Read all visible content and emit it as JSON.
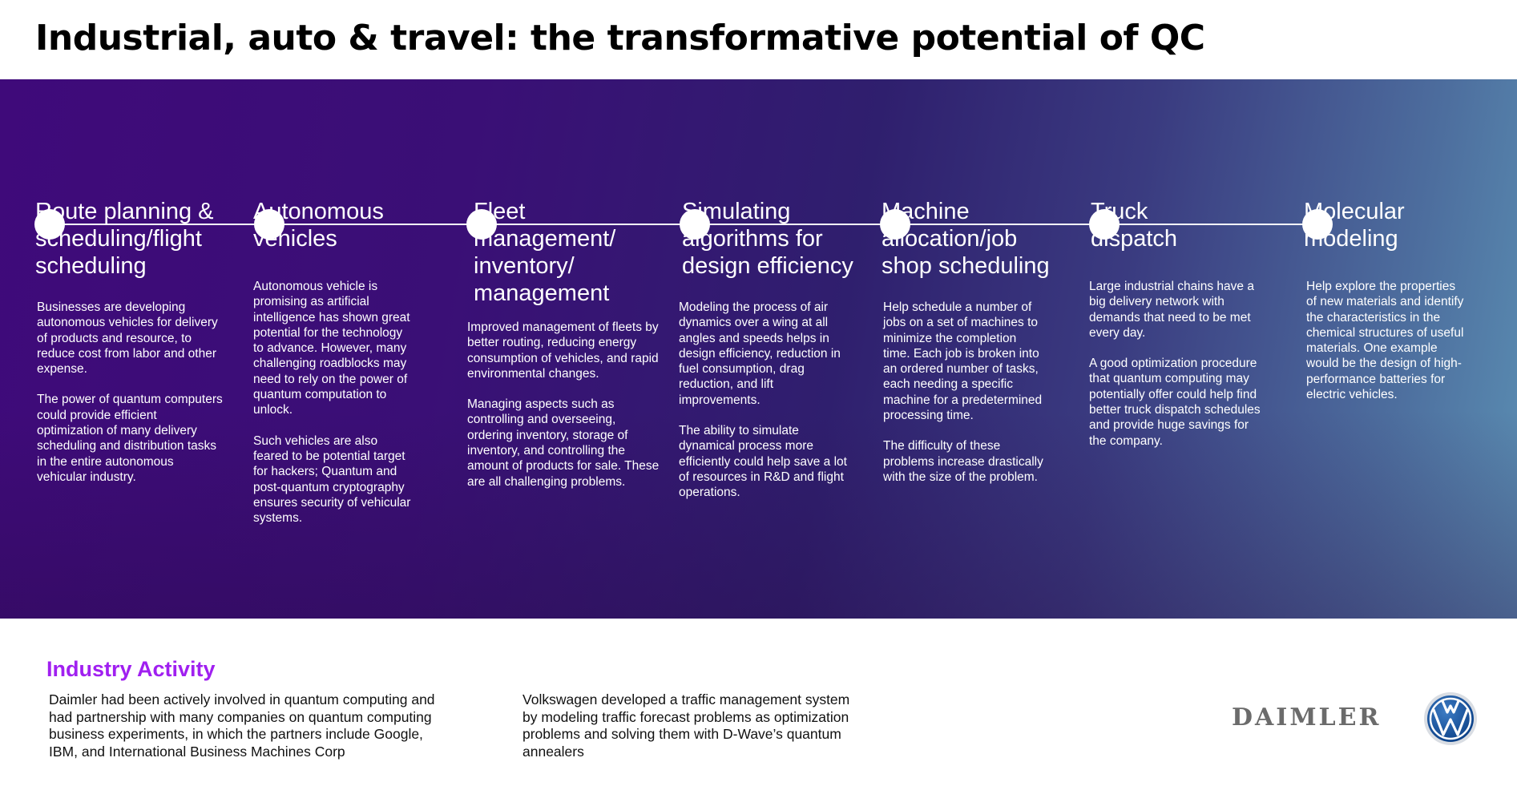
{
  "title": "Industrial, auto & travel: the transformative potential of QC",
  "columns": [
    {
      "title": "Route planning & scheduling/flight scheduling",
      "body": [
        "Businesses are developing autonomous vehicles for delivery of products and resource, to reduce cost from labor and other expense.",
        "The power of quantum computers could provide efficient optimization of many delivery scheduling and distribution tasks in the entire autonomous vehicular industry."
      ]
    },
    {
      "title": "Autonomous vehicles",
      "body": [
        "Autonomous vehicle is promising as artificial intelligence has shown great potential for the technology to advance. However, many challenging roadblocks may need to rely on the power of quantum computation to unlock.",
        "Such vehicles are also feared to be potential target for hackers; Quantum and post-quantum cryptography ensures security of vehicular systems."
      ]
    },
    {
      "title": "Fleet management/ inventory/ management",
      "body": [
        "Improved management of fleets by better routing, reducing energy consumption of vehicles, and rapid environmental changes.",
        "Managing aspects such as controlling and overseeing, ordering inventory, storage of inventory, and controlling the amount of products for sale. These are all challenging problems."
      ]
    },
    {
      "title": "Simulating algorithms for design efficiency",
      "body": [
        "Modeling the process of air dynamics over a wing at all angles and speeds helps in design efficiency, reduction in fuel consumption, drag reduction, and lift improvements.",
        "The ability to simulate dynamical process more efficiently could help save a lot of resources in R&D and flight operations."
      ]
    },
    {
      "title": "Machine allocation/job shop scheduling",
      "body": [
        "Help schedule a number of jobs on a set of machines to minimize the completion time. Each job is broken into an ordered number of tasks, each needing a specific machine for a predetermined processing time.",
        "The difficulty of these problems increase drastically with the size of the problem."
      ]
    },
    {
      "title": "Truck dispatch",
      "body": [
        "Large industrial chains have a big delivery network with demands that need to be met every day.",
        "A good optimization procedure that quantum computing may potentially offer could help find better truck dispatch schedules and provide huge savings for the company."
      ]
    },
    {
      "title": "Molecular modeling",
      "body": [
        "Help explore the properties of new materials and identify the characteristics in the chemical structures of useful materials. One example would be the design of high-performance batteries for electric vehicles."
      ]
    }
  ],
  "industry": {
    "heading": "Industry Activity",
    "daimler_text": "Daimler had been actively involved in quantum computing and had partnership with many companies on quantum computing business experiments, in which the partners include Google, IBM, and International Business Machines Corp",
    "vw_text": "Volkswagen developed a traffic management system by modeling traffic forecast problems as optimization problems and solving them with D-Wave’s quantum annealers"
  },
  "logos": {
    "daimler": "DAIMLER",
    "vw_icon": "volkswagen-logo-icon"
  },
  "colors": {
    "band_start": "#3f0a7a",
    "band_end": "#5b8fb3",
    "industry_heading": "#a020f0"
  }
}
